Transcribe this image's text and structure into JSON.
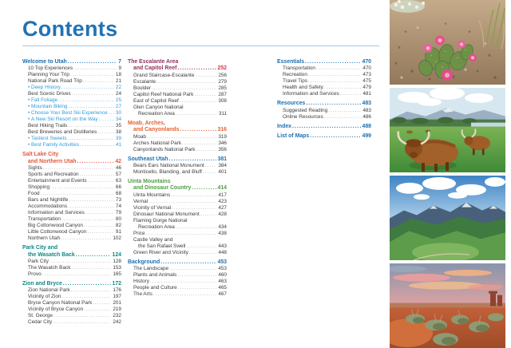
{
  "title": "Contents",
  "colors": {
    "blue": "#1C6FB0",
    "redorange": "#E2593C",
    "teal": "#0D8A89",
    "plum": "#93305C",
    "plum_page": "#D8374F",
    "orange": "#E4622C",
    "green": "#4F9D45",
    "item_text": "#3B3B3B",
    "bullet_blue": "#2D9CDB",
    "title_blue": "#2173B5",
    "divider": "#A9C6DE"
  },
  "toc": {
    "columns": [
      {
        "sections": [
          {
            "title": "Welcome to Utah",
            "page": "7",
            "color": "blue",
            "items": [
              {
                "label": "10 Top Experiences",
                "page": "9"
              },
              {
                "label": "Planning Your Trip",
                "page": "18"
              },
              {
                "label": "National Park Road Trip",
                "page": "21"
              },
              {
                "label": "Deep History",
                "page": "22",
                "bullet": true
              },
              {
                "label": "Best Scenic Drives",
                "page": "24"
              },
              {
                "label": "Fall Foliage",
                "page": "25",
                "bullet": true
              },
              {
                "label": "Mountain Biking",
                "page": "27",
                "bullet": true
              },
              {
                "label": "Choose Your Best Ski Experience",
                "page": "30",
                "bullet": true
              },
              {
                "label": "A New Ski Resort on the Way",
                "page": "34",
                "bullet": true
              },
              {
                "label": "Best Hiking Trails",
                "page": "35"
              },
              {
                "label": "Best Breweries and Distilleries",
                "page": "38"
              },
              {
                "label": "Tastiest Sweets",
                "page": "39",
                "bullet": true
              },
              {
                "label": "Best Family Activities",
                "page": "41",
                "bullet": true
              }
            ]
          },
          {
            "title": "Salt Lake City",
            "title2": "and Northern Utah",
            "page": "42",
            "color": "redorange",
            "items": [
              {
                "label": "Sights",
                "page": "46"
              },
              {
                "label": "Sports and Recreation",
                "page": "57"
              },
              {
                "label": "Entertainment and Events",
                "page": "63"
              },
              {
                "label": "Shopping",
                "page": "66"
              },
              {
                "label": "Food",
                "page": "68"
              },
              {
                "label": "Bars and Nightlife",
                "page": "73"
              },
              {
                "label": "Accommodations",
                "page": "74"
              },
              {
                "label": "Information and Services",
                "page": "79"
              },
              {
                "label": "Transportation",
                "page": "80"
              },
              {
                "label": "Big Cottonwood Canyon",
                "page": "82"
              },
              {
                "label": "Little Cottonwood Canyon",
                "page": "91"
              },
              {
                "label": "Northern Utah",
                "page": "102"
              }
            ]
          },
          {
            "title": "Park City and",
            "title2": "the Wasatch Back",
            "page": "124",
            "color": "teal",
            "items": [
              {
                "label": "Park City",
                "page": "128"
              },
              {
                "label": "The Wasatch Back",
                "page": "153"
              },
              {
                "label": "Provo",
                "page": "165"
              }
            ]
          },
          {
            "title": "Zion and Bryce",
            "page": "172",
            "color": "teal",
            "items": [
              {
                "label": "Zion National Park",
                "page": "176"
              },
              {
                "label": "Vicinity of Zion",
                "page": "197"
              },
              {
                "label": "Bryce Canyon National Park",
                "page": "201"
              },
              {
                "label": "Vicinity of Bryce Canyon",
                "page": "219"
              },
              {
                "label": "St. George",
                "page": "232"
              },
              {
                "label": "Cedar City",
                "page": "242"
              }
            ]
          }
        ]
      },
      {
        "sections": [
          {
            "title": "The Escalante Area",
            "title2": "and Capitol Reef",
            "page": "252",
            "color": "plum",
            "page_color": "plum_page",
            "items": [
              {
                "label": "Grand Staircase-Escalante",
                "page": "256"
              },
              {
                "label": "Escalante",
                "page": "279"
              },
              {
                "label": "Boulder",
                "page": "285"
              },
              {
                "label": "Capitol Reef National Park",
                "page": "287"
              },
              {
                "label": "East of Capitol Reef",
                "page": "308"
              },
              {
                "label": "Glen Canyon National",
                "label2": "Recreation Area",
                "page": "311"
              }
            ]
          },
          {
            "title": "Moab, Arches,",
            "title2": "and Canyonlands",
            "page": "316",
            "color": "orange",
            "items": [
              {
                "label": "Moab",
                "page": "319"
              },
              {
                "label": "Arches National Park",
                "page": "346"
              },
              {
                "label": "Canyonlands National Park",
                "page": "356"
              }
            ]
          },
          {
            "title": "Southeast Utah",
            "page": "381",
            "color": "blue",
            "items": [
              {
                "label": "Bears Ears National Monument",
                "page": "384"
              },
              {
                "label": "Monticello, Blanding, and Bluff",
                "page": "401"
              }
            ]
          },
          {
            "title": "Uinta Mountains",
            "title2": "and Dinosaur Country",
            "page": "414",
            "color": "green",
            "items": [
              {
                "label": "Uinta Mountains",
                "page": "417"
              },
              {
                "label": "Vernal",
                "page": "423"
              },
              {
                "label": "Vicinity of Vernal",
                "page": "427"
              },
              {
                "label": "Dinosaur National Monument",
                "page": "428"
              },
              {
                "label": "Flaming Gorge National",
                "label2": "Recreation Area",
                "page": "434"
              },
              {
                "label": "Price",
                "page": "438"
              },
              {
                "label": "Castle Valley and",
                "label2": "the San Rafael Swell",
                "page": "443"
              },
              {
                "label": "Green River and Vicinity",
                "page": "448"
              }
            ]
          },
          {
            "title": "Background",
            "page": "453",
            "color": "blue",
            "items": [
              {
                "label": "The Landscape",
                "page": "453"
              },
              {
                "label": "Plants and Animals",
                "page": "460"
              },
              {
                "label": "History",
                "page": "463"
              },
              {
                "label": "People and Culture",
                "page": "465"
              },
              {
                "label": "The Arts",
                "page": "467"
              }
            ]
          }
        ]
      },
      {
        "sections": [
          {
            "title": "Essentials",
            "page": "470",
            "color": "blue",
            "items": [
              {
                "label": "Transportation",
                "page": "470"
              },
              {
                "label": "Recreation",
                "page": "473"
              },
              {
                "label": "Travel Tips",
                "page": "475"
              },
              {
                "label": "Health and Safety",
                "page": "479"
              },
              {
                "label": "Information and Services",
                "page": "481"
              }
            ]
          },
          {
            "title": "Resources",
            "page": "483",
            "color": "blue",
            "items": [
              {
                "label": "Suggested Reading",
                "page": "483"
              },
              {
                "label": "Online Resources",
                "page": "486"
              }
            ]
          },
          {
            "title": "Index",
            "page": "488",
            "color": "blue",
            "items": []
          },
          {
            "title": "List of Maps",
            "page": "499",
            "color": "blue",
            "items": []
          }
        ]
      }
    ]
  },
  "photos": [
    {
      "name": "cactus-blooms",
      "description": "Prickly pear cactus with pink blooms on gravelly ground"
    },
    {
      "name": "highland-cattle",
      "description": "Shaggy highland cattle grazing in a green mountain pasture"
    },
    {
      "name": "mountain-range",
      "description": "Snow-capped mountain range with green slopes under cloudy blue sky"
    },
    {
      "name": "desert-sunset",
      "description": "Red desert sand and sagebrush under a pink sunset sky"
    }
  ]
}
